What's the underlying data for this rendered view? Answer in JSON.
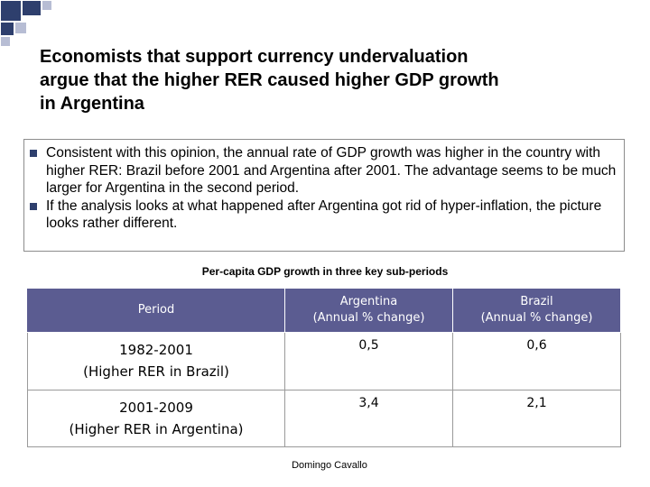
{
  "title": {
    "lines": [
      "Economists that support currency undervaluation",
      "argue that the higher RER caused higher GDP growth",
      "in Argentina"
    ]
  },
  "bullets": [
    "Consistent with this opinion, the annual rate of GDP growth was higher in the country with higher RER: Brazil before 2001 and Argentina after 2001. The advantage seems to be much larger for Argentina in the second period.",
    "If the analysis looks at what happened after Argentina got rid of hyper-inflation, the picture  looks rather different."
  ],
  "table": {
    "caption": "Per-capita GDP growth  in three key sub-periods",
    "headers": {
      "period": "Period",
      "argentina": "Argentina",
      "argentina_sub": "(Annual % change)",
      "brazil": "Brazil",
      "brazil_sub": "(Annual % change)"
    },
    "rows": [
      {
        "period": "1982-2001",
        "note": "(Higher RER in Brazil)",
        "argentina": "0,5",
        "brazil": "0,6"
      },
      {
        "period": "2001-2009",
        "note": "(Higher RER in Argentina)",
        "argentina": "3,4",
        "brazil": "2,1"
      }
    ]
  },
  "footer": "Domingo Cavallo",
  "colors": {
    "header_bg": "#5b5c91",
    "bullet": "#2e3f6d",
    "corner_squares": "#2e3f6d"
  }
}
